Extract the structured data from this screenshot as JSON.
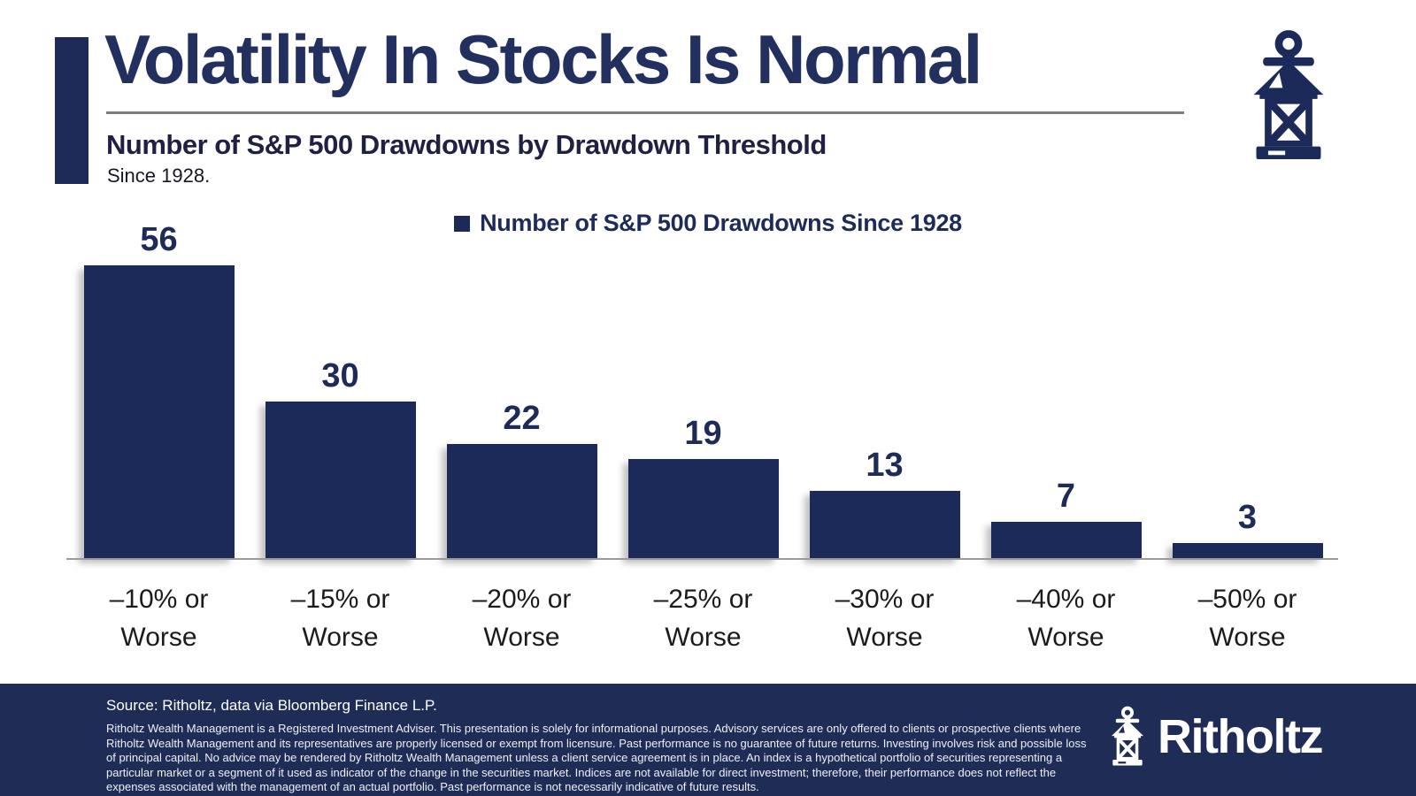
{
  "header": {
    "title": "Volatility In Stocks Is Normal",
    "subtitle": "Number of S&P 500 Drawdowns by Drawdown Threshold",
    "subnote": "Since 1928."
  },
  "legend": {
    "label": "Number of S&P 500 Drawdowns Since 1928"
  },
  "chart_data": {
    "type": "bar",
    "title": "Number of S&P 500 Drawdowns by Drawdown Threshold",
    "subtitle": "Since 1928.",
    "series_name": "Number of S&P 500 Drawdowns Since 1928",
    "categories": [
      "–10% or Worse",
      "–15% or Worse",
      "–20% or Worse",
      "–25% or Worse",
      "–30% or Worse",
      "–40% or Worse",
      "–50% or Worse"
    ],
    "values": [
      56,
      30,
      22,
      19,
      13,
      7,
      3
    ],
    "xlabel": "",
    "ylabel": "",
    "ylim": [
      0,
      56
    ],
    "grid": false,
    "legend_position": "top",
    "value_labels_shown": true,
    "bar_color": "#1b2a58"
  },
  "icons": {
    "header_icon": "lantern-icon",
    "footer_icon": "lantern-icon"
  },
  "footer": {
    "source": "Source: Ritholtz, data via Bloomberg Finance L.P.",
    "disclaimer": "Ritholtz Wealth Management is a Registered Investment Adviser. This presentation is solely for informational purposes. Advisory services are only offered to clients or prospective clients where Ritholtz Wealth Management and its representatives are properly licensed or exempt from licensure. Past performance is no guarantee of future returns. Investing involves risk and possible loss of principal capital. No advice may be rendered by Ritholtz Wealth Management unless a client service agreement is in place. An index is a hypothetical portfolio of securities representing a particular market or a segment of it used as indicator of the change in the securities market. Indices are not available for direct investment; therefore, their performance does not reflect the expenses associated with the management of an actual portfolio. Past performance is not necessarily indicative of future results.",
    "brand": "Ritholtz"
  },
  "colors": {
    "navy": "#1b2a58",
    "title_navy": "#22305f",
    "footer_bg": "#1f2c55",
    "axis_gray": "#9a9a9a",
    "label_black": "#1b1b1b"
  }
}
